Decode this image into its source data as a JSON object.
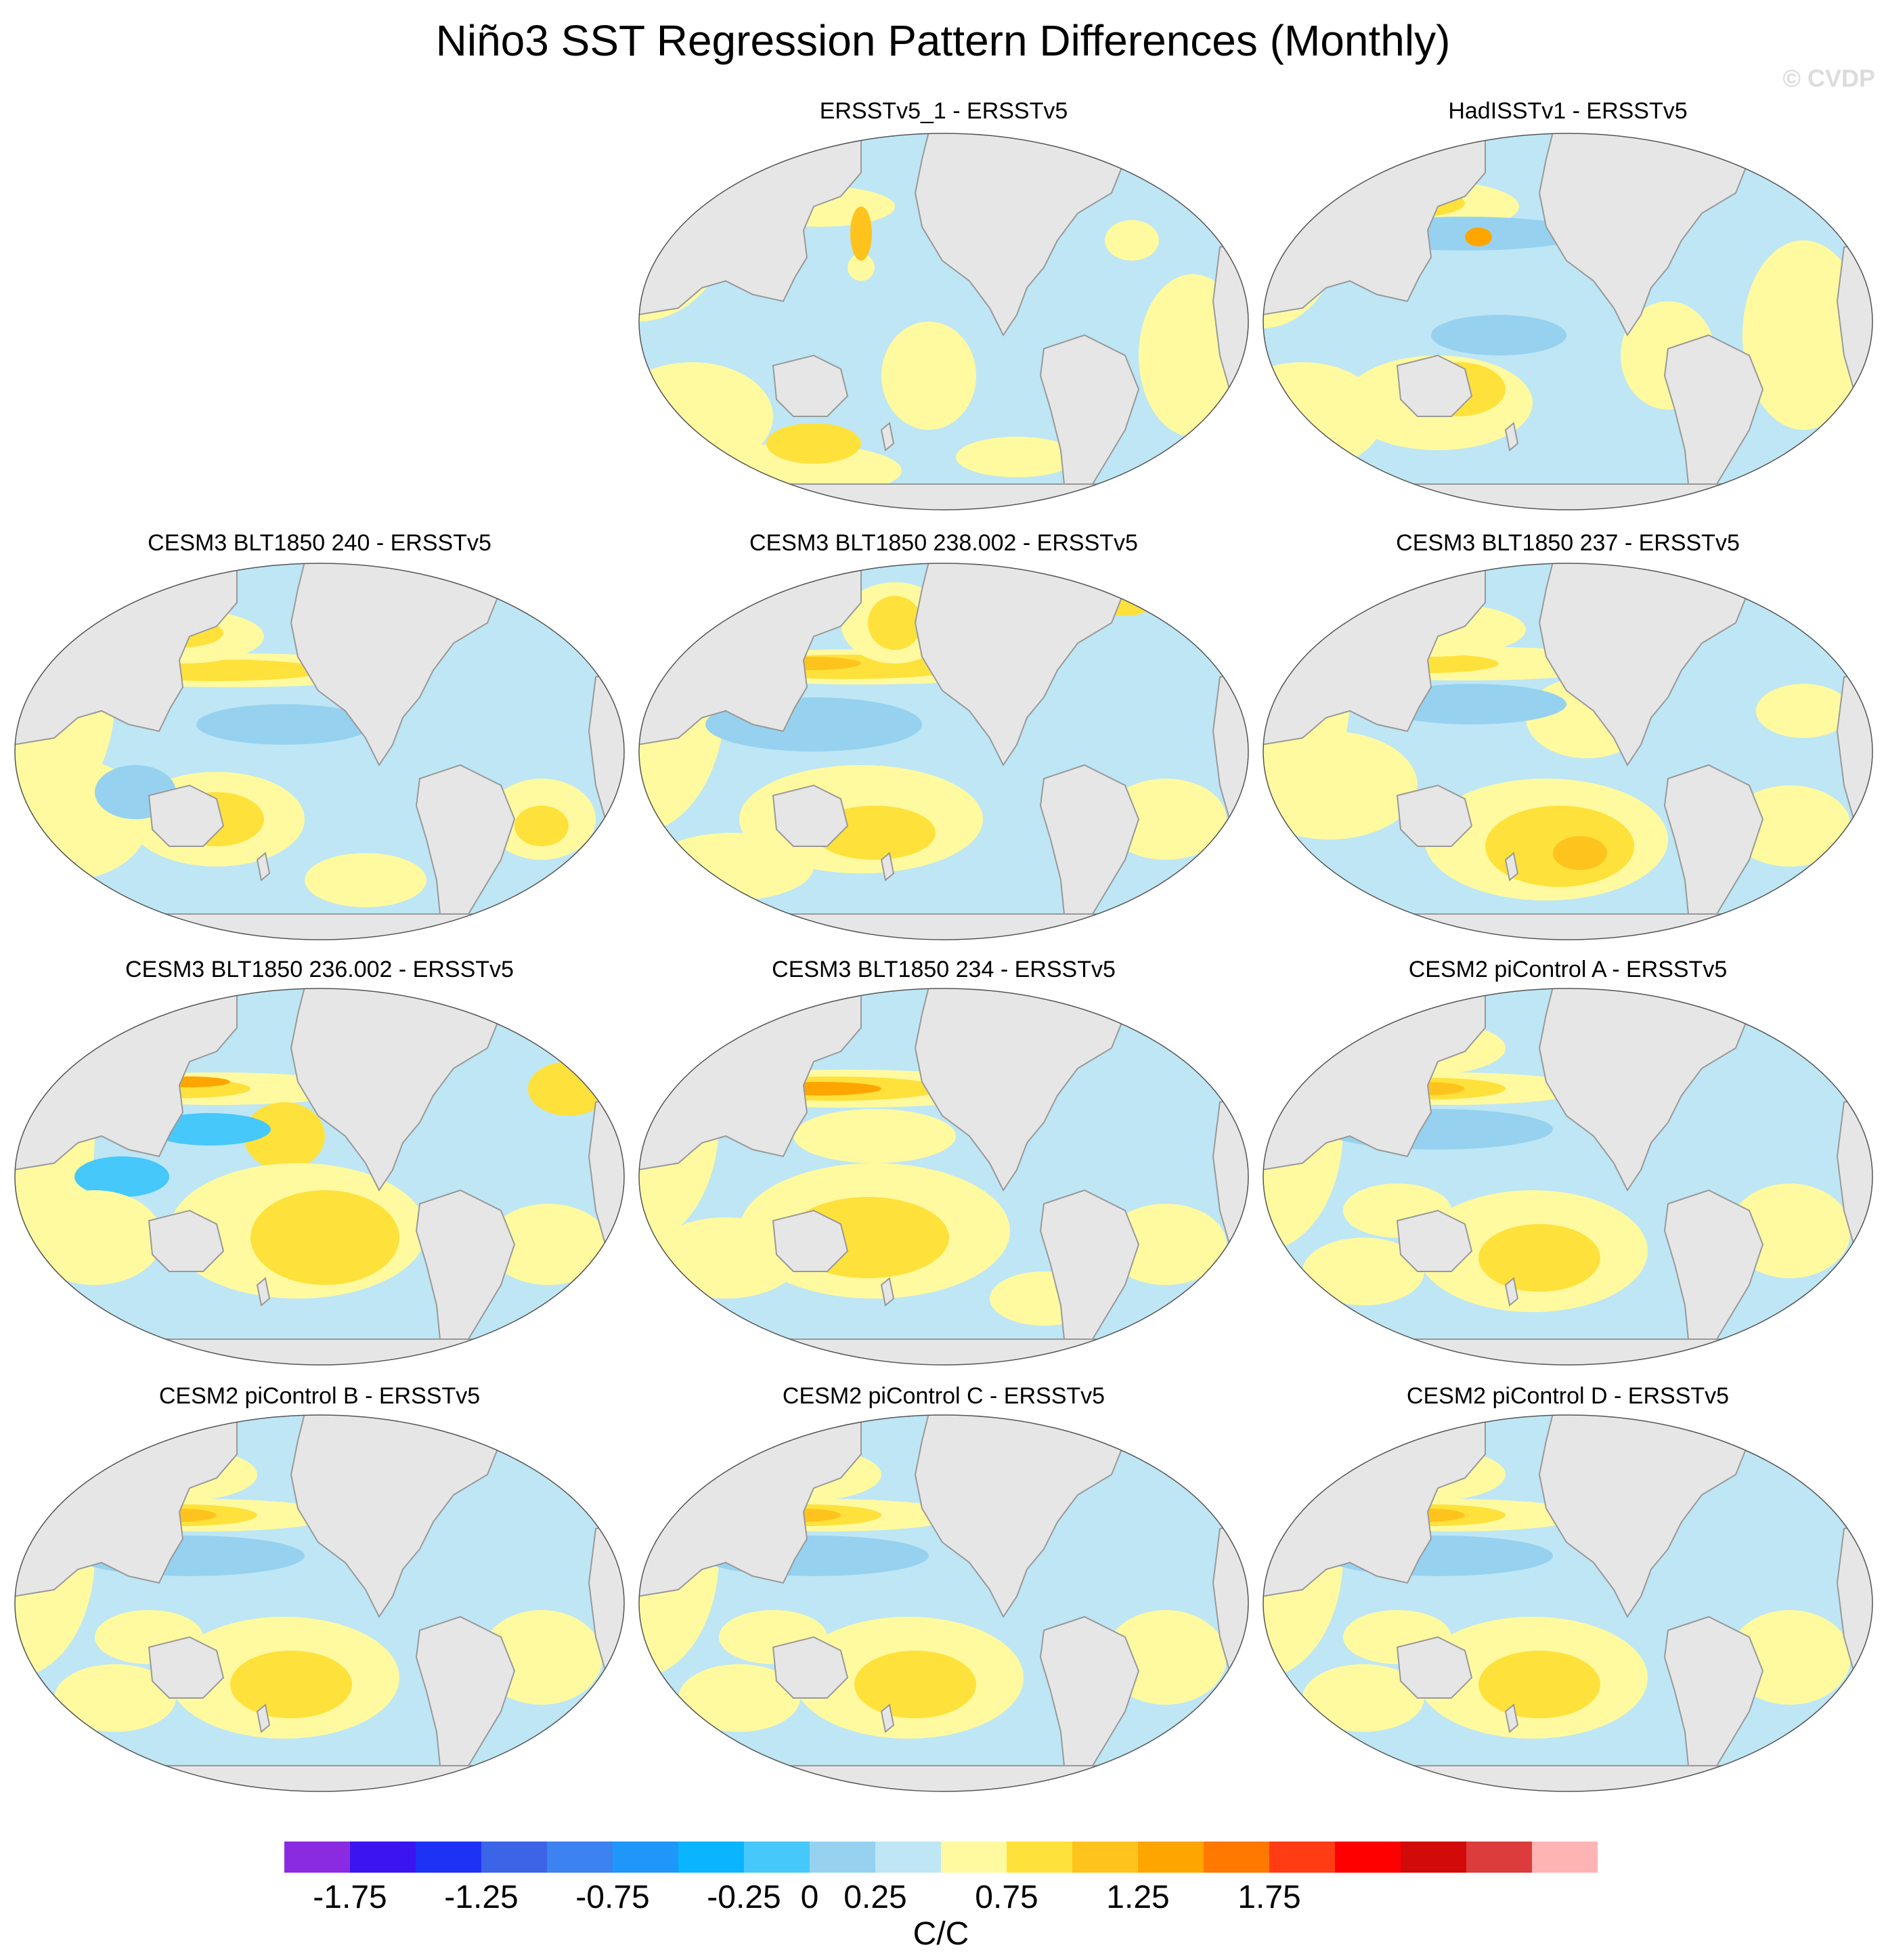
{
  "title": "Niño3 SST Regression Pattern Differences (Monthly)",
  "watermark": "© CVDP",
  "panels": [
    null,
    {
      "title": "ERSSTv5_1 - ERSSTv5",
      "style": "obs_small"
    },
    {
      "title": "HadISSTv1 - ERSSTv5",
      "style": "obs_had"
    },
    {
      "title": "CESM3 BLT1850 240 - ERSSTv5",
      "style": "model_a"
    },
    {
      "title": "CESM3 BLT1850 238.002 - ERSSTv5",
      "style": "model_b"
    },
    {
      "title": "CESM3 BLT1850 237 - ERSSTv5",
      "style": "model_c"
    },
    {
      "title": "CESM3 BLT1850 236.002 - ERSSTv5",
      "style": "model_d"
    },
    {
      "title": "CESM3 BLT1850 234 - ERSSTv5",
      "style": "model_e"
    },
    {
      "title": "CESM2 piControl A - ERSSTv5",
      "style": "cesm2"
    },
    {
      "title": "CESM2 piControl B - ERSSTv5",
      "style": "cesm2"
    },
    {
      "title": "CESM2 piControl C - ERSSTv5",
      "style": "cesm2"
    },
    {
      "title": "CESM2 piControl D - ERSSTv5",
      "style": "cesm2"
    }
  ],
  "colorbar": {
    "label": "C/C",
    "colors": [
      "#8a2be2",
      "#3c14f0",
      "#1e32f5",
      "#3c64e6",
      "#3c82f0",
      "#1e96fa",
      "#0ab4ff",
      "#46c8fa",
      "#96d2f0",
      "#bee6f5",
      "#fffaa0",
      "#ffe13c",
      "#ffc31e",
      "#ffa500",
      "#ff7800",
      "#ff3c14",
      "#ff0000",
      "#d20a0a",
      "#dc3c3c",
      "#ffb4b4"
    ],
    "tick_labels": [
      "-1.75",
      "-1.25",
      "-0.75",
      "-0.25",
      "0",
      "0.25",
      "0.75",
      "1.25",
      "1.75"
    ],
    "tick_values": [
      -1.75,
      -1.25,
      -0.75,
      -0.25,
      0,
      0.25,
      0.75,
      1.25,
      1.75
    ]
  }
}
